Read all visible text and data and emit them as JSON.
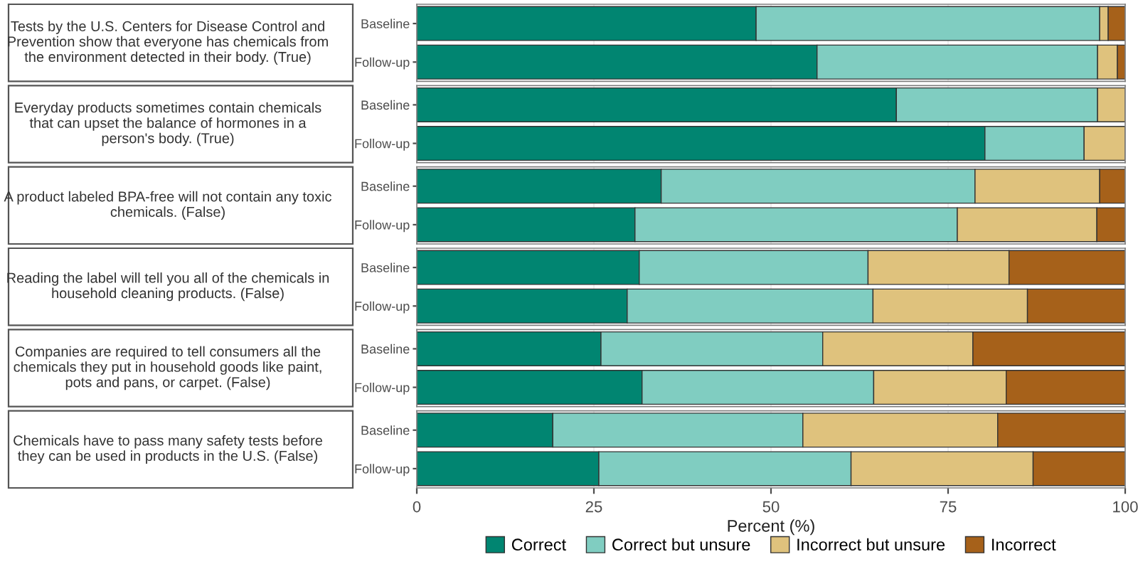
{
  "chart_data": [
    {
      "type": "bar",
      "orientation": "horizontal",
      "stacked": true,
      "title": "Tests by the U.S. Centers for Disease Control and Prevention show that everyone has chemicals from the environment detected in their body. (True)",
      "categories": [
        "Baseline",
        "Follow-up"
      ],
      "xlim": [
        0,
        100
      ],
      "xticks": [
        0,
        25,
        50,
        75,
        100
      ],
      "tick_labels": "y",
      "grid": "x",
      "series": [
        {
          "color": "#018571",
          "values": [
            47.9,
            56.5
          ]
        },
        {
          "color": "#80cdc1",
          "values": [
            48.5,
            39.6
          ]
        },
        {
          "color": "#dfc27d",
          "values": [
            1.2,
            2.8
          ]
        },
        {
          "color": "#a6611a",
          "values": [
            2.4,
            1.1
          ]
        }
      ]
    },
    {
      "type": "bar",
      "orientation": "horizontal",
      "stacked": true,
      "title": "Everyday products sometimes contain chemicals that can upset the balance of hormones in a person's body. (True)",
      "categories": [
        "Baseline",
        "Follow-up"
      ],
      "xlim": [
        0,
        100
      ],
      "xticks": [
        0,
        25,
        50,
        75,
        100
      ],
      "tick_labels": "y",
      "grid": "x",
      "series": [
        {
          "color": "#018571",
          "values": [
            67.7,
            80.2
          ]
        },
        {
          "color": "#80cdc1",
          "values": [
            28.4,
            14.0
          ]
        },
        {
          "color": "#dfc27d",
          "values": [
            3.9,
            5.8
          ]
        },
        {
          "color": "#a6611a",
          "values": [
            0,
            0
          ]
        }
      ]
    },
    {
      "type": "bar",
      "orientation": "horizontal",
      "stacked": true,
      "title": "A product labeled BPA-free will not contain any toxic chemicals. (False)",
      "categories": [
        "Baseline",
        "Follow-up"
      ],
      "xlim": [
        0,
        100
      ],
      "xticks": [
        0,
        25,
        50,
        75,
        100
      ],
      "tick_labels": "y",
      "grid": "x",
      "series": [
        {
          "color": "#018571",
          "values": [
            34.5,
            30.8
          ]
        },
        {
          "color": "#80cdc1",
          "values": [
            44.3,
            45.5
          ]
        },
        {
          "color": "#dfc27d",
          "values": [
            17.6,
            19.7
          ]
        },
        {
          "color": "#a6611a",
          "values": [
            3.6,
            4.0
          ]
        }
      ]
    },
    {
      "type": "bar",
      "orientation": "horizontal",
      "stacked": true,
      "title": "Reading the label will tell you all of the chemicals in household cleaning products. (False)",
      "categories": [
        "Baseline",
        "Follow-up"
      ],
      "xlim": [
        0,
        100
      ],
      "xticks": [
        0,
        25,
        50,
        75,
        100
      ],
      "tick_labels": "y",
      "grid": "x",
      "series": [
        {
          "color": "#018571",
          "values": [
            31.4,
            29.7
          ]
        },
        {
          "color": "#80cdc1",
          "values": [
            32.3,
            34.7
          ]
        },
        {
          "color": "#dfc27d",
          "values": [
            19.9,
            21.8
          ]
        },
        {
          "color": "#a6611a",
          "values": [
            16.4,
            13.8
          ]
        }
      ]
    },
    {
      "type": "bar",
      "orientation": "horizontal",
      "stacked": true,
      "title": "Companies are required to tell consumers all the chemicals they put in household goods like paint, pots and pans, or carpet. (False)",
      "categories": [
        "Baseline",
        "Follow-up"
      ],
      "xlim": [
        0,
        100
      ],
      "xticks": [
        0,
        25,
        50,
        75,
        100
      ],
      "tick_labels": "y",
      "grid": "x",
      "series": [
        {
          "color": "#018571",
          "values": [
            26.0,
            31.8
          ]
        },
        {
          "color": "#80cdc1",
          "values": [
            31.3,
            32.7
          ]
        },
        {
          "color": "#dfc27d",
          "values": [
            21.2,
            18.7
          ]
        },
        {
          "color": "#a6611a",
          "values": [
            21.5,
            16.8
          ]
        }
      ]
    },
    {
      "type": "bar",
      "orientation": "horizontal",
      "stacked": true,
      "title": "Chemicals have to pass many safety tests before they can be used in products in the U.S. (False)",
      "categories": [
        "Baseline",
        "Follow-up"
      ],
      "xlim": [
        0,
        100
      ],
      "xticks": [
        0,
        25,
        50,
        75,
        100
      ],
      "xlabel": "Percent (%)",
      "grid": "x",
      "legend": "bottom",
      "series": [
        {
          "name": "Correct",
          "color": "#018571",
          "values": [
            19.2,
            25.7
          ]
        },
        {
          "name": "Correct but unsure",
          "color": "#80cdc1",
          "values": [
            35.3,
            35.6
          ]
        },
        {
          "name": "Incorrect but unsure",
          "color": "#dfc27d",
          "values": [
            27.5,
            25.7
          ]
        },
        {
          "name": "Incorrect",
          "color": "#a6611a",
          "values": [
            18.0,
            13.0
          ]
        }
      ]
    }
  ]
}
